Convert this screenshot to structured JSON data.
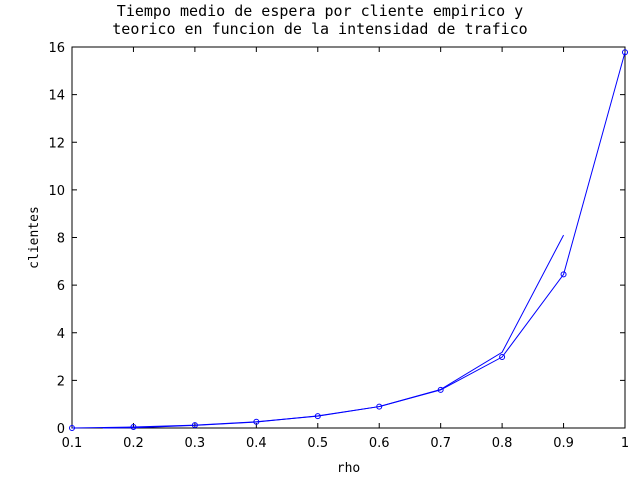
{
  "chart_data": {
    "type": "line",
    "title_lines": [
      "Tiempo medio de espera por cliente empirico y",
      "teorico en funcion de la intensidad de trafico"
    ],
    "xlabel": "rho",
    "ylabel": "clientes",
    "xlim": [
      0.1,
      1.0
    ],
    "ylim": [
      0,
      16
    ],
    "xticks": [
      0.1,
      0.2,
      0.3,
      0.4,
      0.5,
      0.6,
      0.7,
      0.8,
      0.9,
      1
    ],
    "yticks": [
      0,
      2,
      4,
      6,
      8,
      10,
      12,
      14,
      16
    ],
    "xtick_labels": [
      "0.1",
      "0.2",
      "0.3",
      "0.4",
      "0.5",
      "0.6",
      "0.7",
      "0.8",
      "0.9",
      "1"
    ],
    "ytick_labels": [
      "0",
      "2",
      "4",
      "6",
      "8",
      "10",
      "12",
      "14",
      "16"
    ],
    "grid": false,
    "series": [
      {
        "style": "line",
        "color": "#0000ff",
        "x": [
          0.15,
          0.2,
          0.3,
          0.4,
          0.5,
          0.6,
          0.7,
          0.8,
          0.9
        ],
        "y": [
          0.0,
          0.01,
          0.11,
          0.25,
          0.51,
          0.9,
          1.62,
          3.18,
          8.1
        ]
      },
      {
        "style": "line-markers",
        "marker": "circle",
        "color": "#0000ff",
        "x": [
          0.1,
          0.2,
          0.3,
          0.4,
          0.5,
          0.6,
          0.7,
          0.8,
          0.9,
          1.0
        ],
        "y": [
          0.0,
          0.04,
          0.12,
          0.26,
          0.5,
          0.9,
          1.6,
          2.98,
          6.45,
          15.78
        ]
      }
    ]
  }
}
